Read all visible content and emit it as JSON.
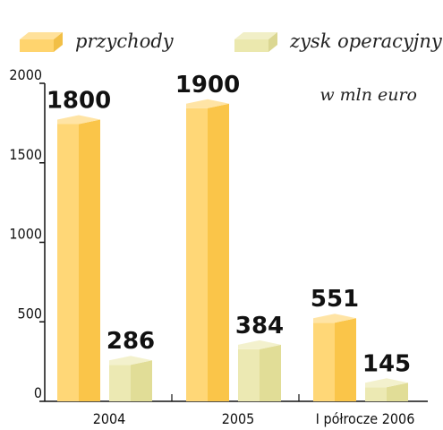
{
  "chart_data": {
    "type": "bar",
    "categories": [
      "2004",
      "2005",
      "I półrocze 2006"
    ],
    "series": [
      {
        "name": "przychody",
        "values": [
          1800,
          1900,
          551
        ],
        "color": "#ffc94a"
      },
      {
        "name": "zysk operacyjny",
        "values": [
          286,
          384,
          145
        ],
        "color": "#e6e29a"
      }
    ],
    "data_labels": [
      [
        "1800",
        "1900",
        "551"
      ],
      [
        "286",
        "384",
        "145"
      ]
    ],
    "unit_note": "w mln euro",
    "yticks": [
      0,
      500,
      1000,
      1500,
      2000
    ],
    "ytick_labels": [
      "0",
      "500",
      "1000",
      "1500",
      "2000"
    ],
    "ylim": [
      0,
      2000
    ],
    "legend_position": "top",
    "grid": false,
    "style": "3d-bars"
  }
}
